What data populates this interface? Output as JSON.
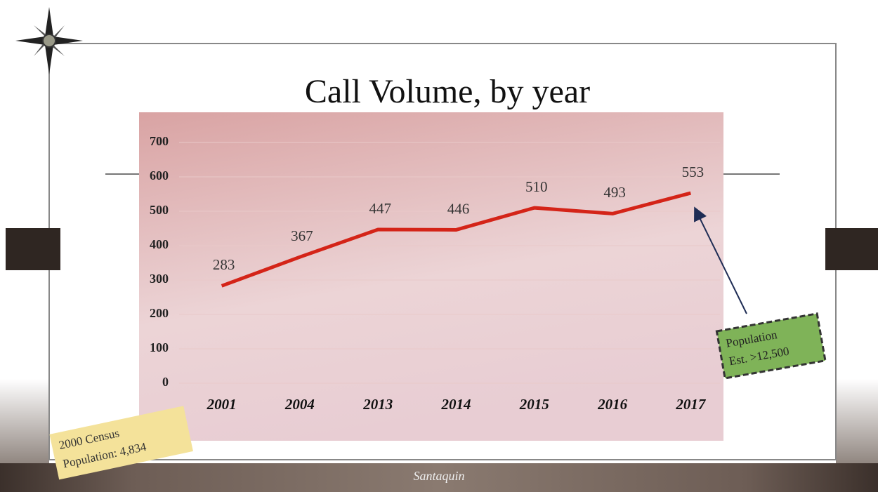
{
  "chart_data": {
    "type": "line",
    "title": "Call Volume, by year",
    "categories": [
      "2001",
      "2004",
      "2013",
      "2014",
      "2015",
      "2016",
      "2017"
    ],
    "series": [
      {
        "name": "Call Volume",
        "color": "#d42418",
        "values": [
          283,
          367,
          447,
          446,
          510,
          493,
          553
        ]
      }
    ],
    "ylim": [
      0,
      700
    ],
    "yticks": [
      0,
      100,
      200,
      300,
      400,
      500,
      600,
      700
    ],
    "grid": true,
    "annotations": [
      {
        "lines": [
          "2000 Census",
          "Population: 4,834"
        ]
      },
      {
        "lines": [
          "Population",
          "Est. >12,500"
        ]
      }
    ]
  },
  "logo": "Santaquin"
}
